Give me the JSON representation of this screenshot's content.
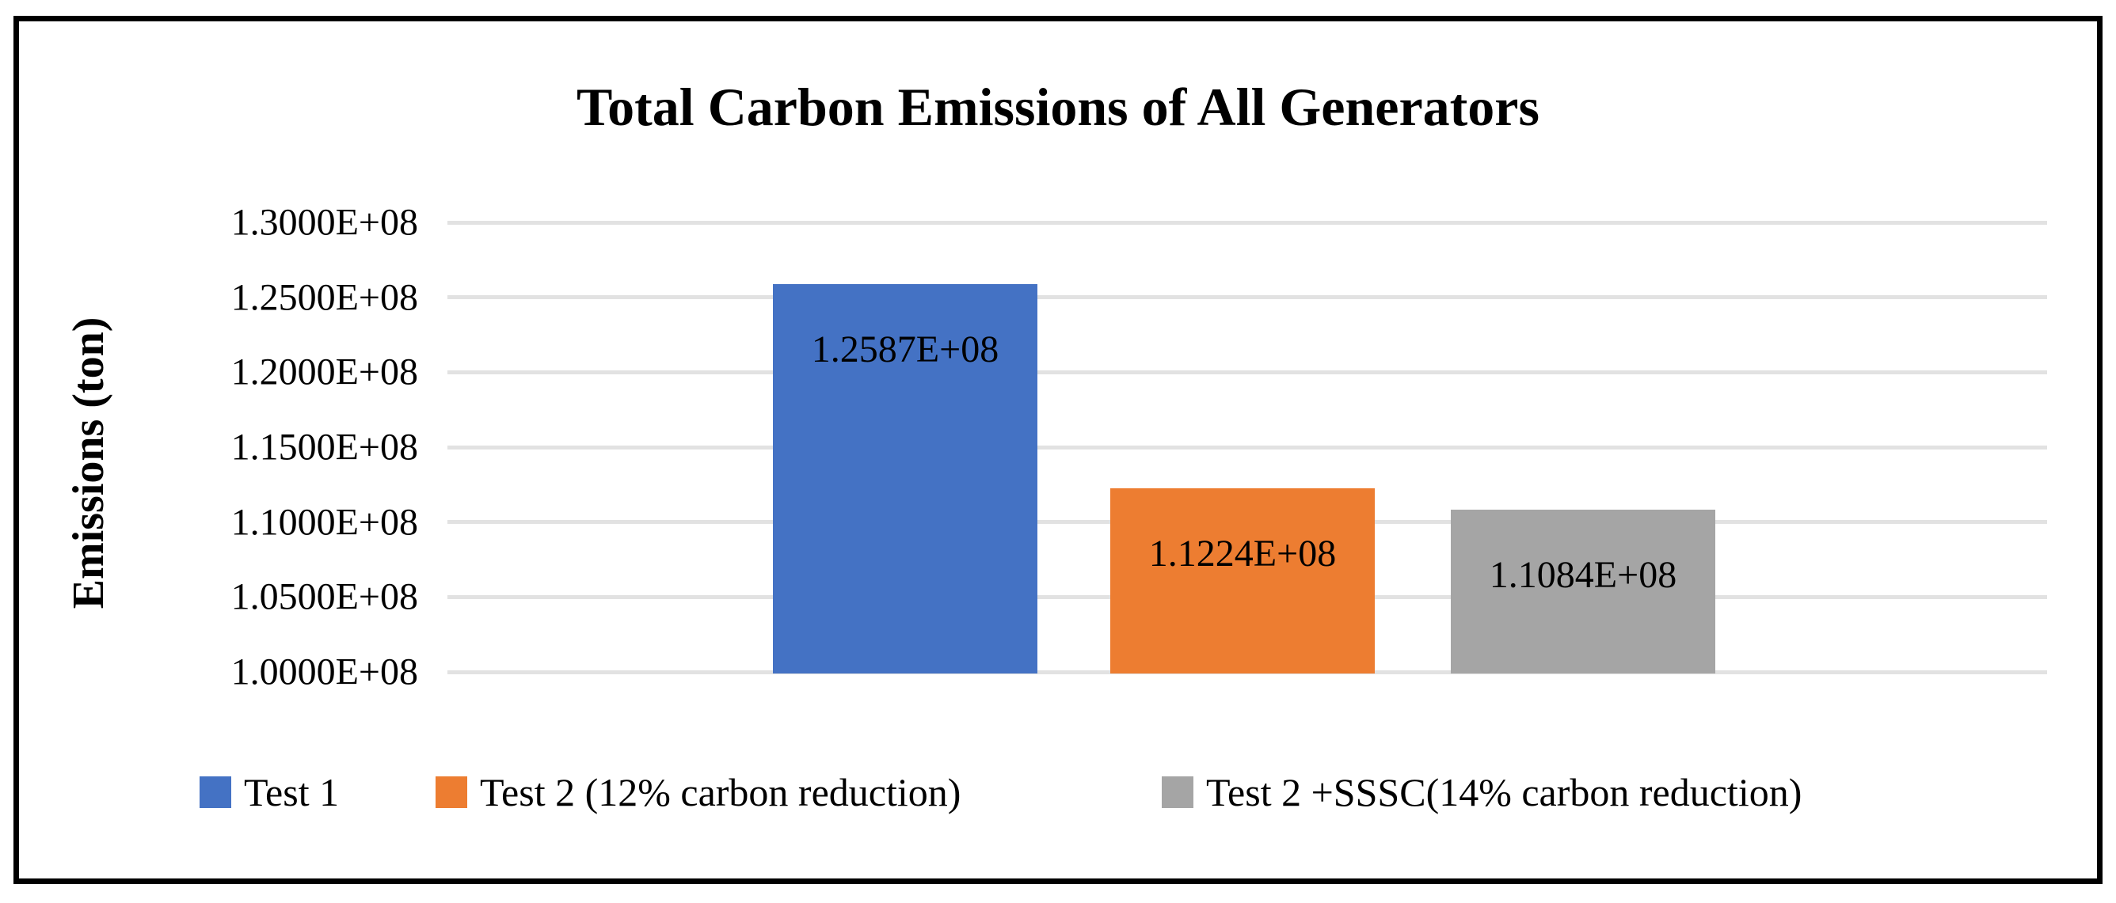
{
  "frame": {
    "border_color": "#000000",
    "background": "#FFFFFF"
  },
  "chart_data": {
    "type": "bar",
    "title": "Total Carbon Emissions of All Generators",
    "xlabel": "",
    "ylabel": "Emissions (ton)",
    "ylim": [
      100000000,
      130000000
    ],
    "ytick_step": 5000000,
    "grid": true,
    "gridline_color": "#E2E2E2",
    "legend_position": "bottom",
    "data_labels": "inside-end",
    "yticks": [
      {
        "label": "1.3000E+08",
        "value": 130000000
      },
      {
        "label": "1.2500E+08",
        "value": 125000000
      },
      {
        "label": "1.2000E+08",
        "value": 120000000
      },
      {
        "label": "1.1500E+08",
        "value": 115000000
      },
      {
        "label": "1.1000E+08",
        "value": 110000000
      },
      {
        "label": "1.0500E+08",
        "value": 105000000
      },
      {
        "label": "1.0000E+08",
        "value": 100000000
      }
    ],
    "series": [
      {
        "id": "test-1",
        "name": "Test 1",
        "value": 125870000,
        "data_label": "1.2587E+08",
        "color": "#4472C4"
      },
      {
        "id": "test-2",
        "name": "Test 2 (12% carbon reduction)",
        "value": 112240000,
        "data_label": "1.1224E+08",
        "color": "#ED7D31"
      },
      {
        "id": "test-2-sssc",
        "name": "Test 2 +SSSC(14% carbon reduction)",
        "value": 110840000,
        "data_label": "1.1084E+08",
        "color": "#A5A5A5"
      }
    ]
  }
}
